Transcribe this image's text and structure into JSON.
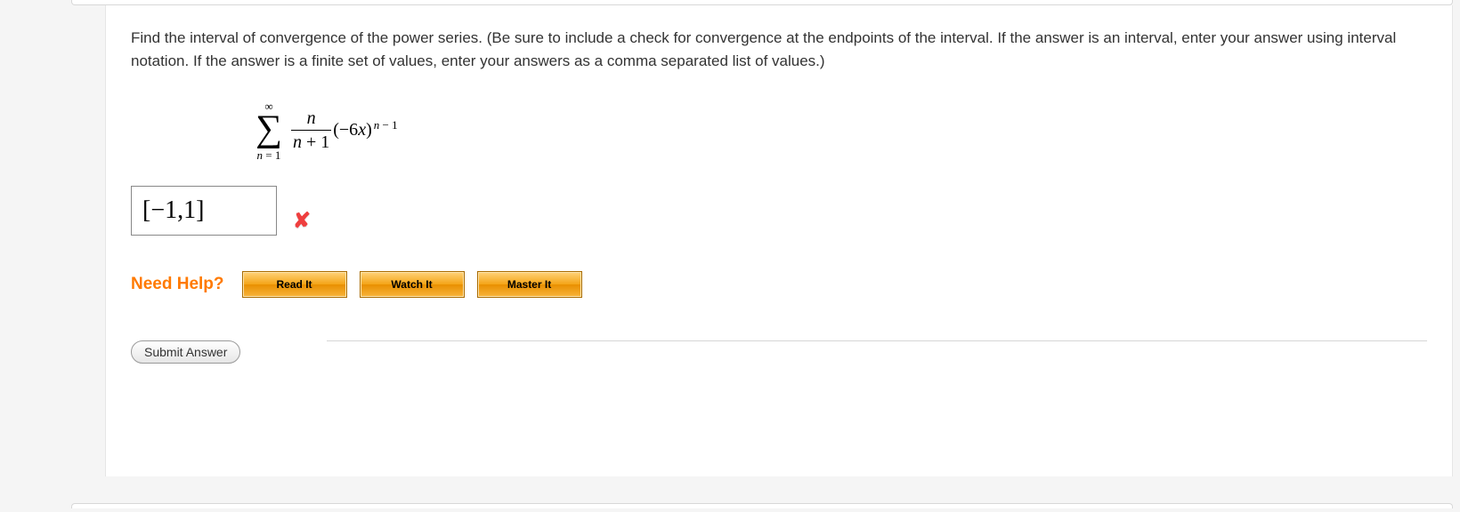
{
  "question": {
    "prompt": "Find the interval of convergence of the power series. (Be sure to include a check for convergence at the endpoints of the interval. If the answer is an interval, enter your answer using interval notation. If the answer is a finite set of values, enter your answers as a comma separated list of values.)",
    "formula": {
      "sum_upper": "∞",
      "sum_lower_var": "n",
      "sum_lower_eq": " = 1",
      "fraction_numer": "n",
      "fraction_denom_var": "n",
      "fraction_denom_rest": " + 1",
      "base_open": "(−6",
      "base_var": "x",
      "base_close": ")",
      "exponent_var": "n",
      "exponent_rest": " − 1"
    }
  },
  "answer": {
    "value": "[−1,1]",
    "correct": false
  },
  "help": {
    "label": "Need Help?",
    "buttons": {
      "read": "Read It",
      "watch": "Watch It",
      "master": "Master It"
    }
  },
  "submit": {
    "label": "Submit Answer"
  },
  "colors": {
    "help_label": "#ff7a00",
    "incorrect_icon": "#ef3f3f",
    "button_gradient_top": "#ffd27a",
    "button_gradient_bottom": "#e88f00"
  }
}
